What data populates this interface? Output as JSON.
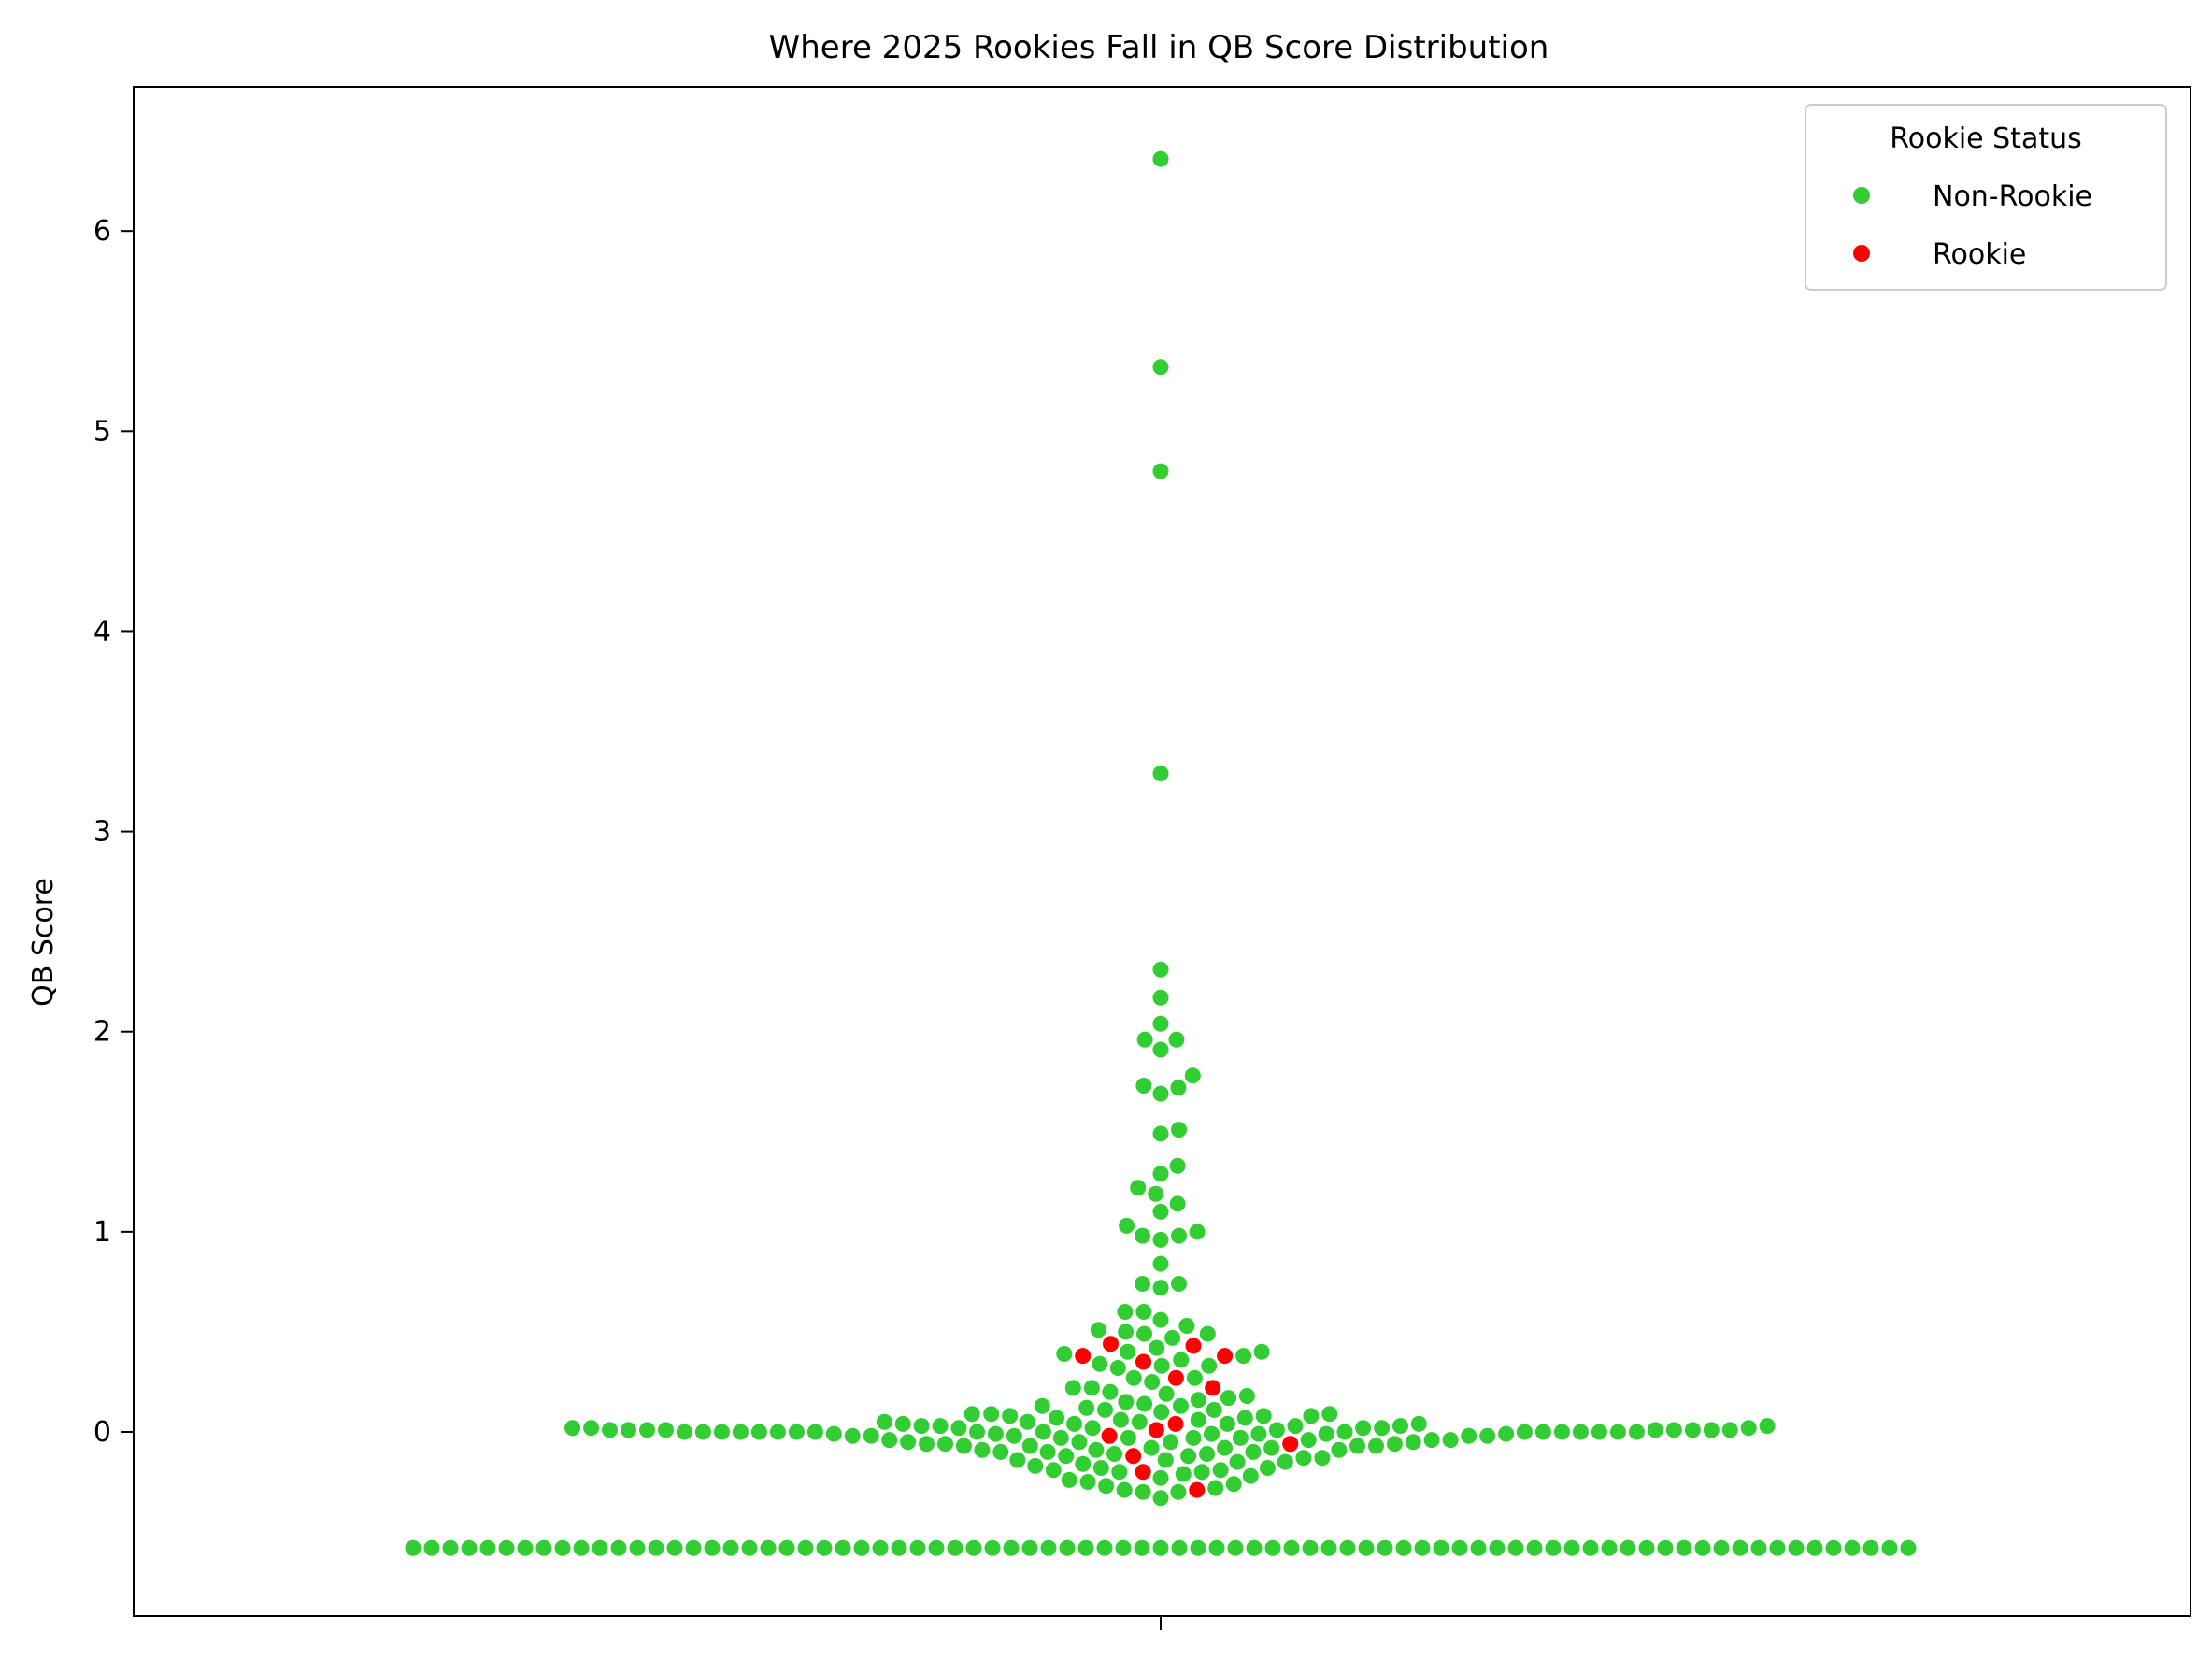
{
  "chart_data": {
    "type": "scatter",
    "subtype": "swarm",
    "title": "Where 2025 Rookies Fall in QB Score Distribution",
    "xlabel": "",
    "ylabel": "QB Score",
    "ylim": [
      -0.92,
      6.72
    ],
    "yticks": [
      0,
      1,
      2,
      3,
      4,
      5,
      6
    ],
    "grid": false,
    "legend": {
      "title": "Rookie Status",
      "placement": "upper-right",
      "entries": [
        {
          "label": "Non-Rookie",
          "color": "#32cd32"
        },
        {
          "label": "Rookie",
          "color": "#ff0000"
        }
      ]
    },
    "colors": {
      "Non-Rookie": "#32cd32",
      "Rookie": "#ff0000"
    },
    "series": [
      {
        "name": "Rookie",
        "values": [
          0.44,
          0.43,
          0.38,
          0.38,
          0.35,
          0.27,
          0.22,
          0.04,
          0.01,
          -0.02,
          -0.06,
          -0.12,
          -0.2,
          -0.29
        ]
      },
      {
        "name": "Non-Rookie",
        "values": [
          6.36,
          5.32,
          4.8,
          3.29,
          2.31,
          2.17,
          2.04,
          1.96,
          1.96,
          1.91,
          1.78,
          1.73,
          1.72,
          1.69,
          1.51,
          1.49,
          1.33,
          1.29,
          1.22,
          1.19,
          1.14,
          1.1,
          1.03,
          1.0,
          0.98,
          0.98,
          0.96,
          0.84,
          0.74,
          0.74,
          0.72,
          0.6,
          0.6,
          0.56,
          0.53,
          0.51,
          0.5,
          0.49,
          0.49,
          0.47,
          0.42,
          0.4,
          0.4,
          0.39,
          0.38,
          0.36,
          0.34,
          0.33,
          0.33,
          0.32,
          0.27,
          0.27,
          0.25,
          0.22,
          0.22,
          0.2,
          0.19,
          0.18,
          0.17,
          0.16,
          0.15,
          0.14,
          0.13,
          0.13,
          0.12,
          0.11,
          0.11,
          0.1,
          0.09,
          0.09,
          0.09,
          0.08,
          0.08,
          0.08,
          0.07,
          0.07,
          0.06,
          0.06,
          0.05,
          0.05,
          0.05,
          0.04,
          0.04,
          0.04,
          0.04,
          0.03,
          0.03,
          0.03,
          0.03,
          0.03,
          0.02,
          0.02,
          0.02,
          0.02,
          0.02,
          0.02,
          0.02,
          0.01,
          0.01,
          0.01,
          0.01,
          0.01,
          0.01,
          0.01,
          0.01,
          0.01,
          0.01,
          0.0,
          0.0,
          0.0,
          0.0,
          0.0,
          0.0,
          0.0,
          0.0,
          0.0,
          0.0,
          0.0,
          0.0,
          0.0,
          0.0,
          0.0,
          0.0,
          0.0,
          0.0,
          -0.01,
          -0.01,
          -0.01,
          -0.01,
          -0.01,
          -0.01,
          -0.02,
          -0.02,
          -0.02,
          -0.02,
          -0.02,
          -0.03,
          -0.03,
          -0.03,
          -0.03,
          -0.04,
          -0.04,
          -0.04,
          -0.04,
          -0.05,
          -0.05,
          -0.05,
          -0.05,
          -0.06,
          -0.06,
          -0.06,
          -0.07,
          -0.07,
          -0.07,
          -0.07,
          -0.08,
          -0.08,
          -0.08,
          -0.09,
          -0.09,
          -0.09,
          -0.1,
          -0.1,
          -0.1,
          -0.11,
          -0.11,
          -0.12,
          -0.12,
          -0.13,
          -0.13,
          -0.14,
          -0.14,
          -0.15,
          -0.15,
          -0.16,
          -0.17,
          -0.18,
          -0.18,
          -0.19,
          -0.19,
          -0.2,
          -0.2,
          -0.21,
          -0.22,
          -0.23,
          -0.24,
          -0.25,
          -0.26,
          -0.27,
          -0.28,
          -0.29,
          -0.3,
          -0.3,
          -0.33,
          -0.58,
          -0.58,
          -0.58,
          -0.58,
          -0.58,
          -0.58,
          -0.58,
          -0.58,
          -0.58,
          -0.58,
          -0.58,
          -0.58,
          -0.58,
          -0.58,
          -0.58,
          -0.58,
          -0.58,
          -0.58,
          -0.58,
          -0.58,
          -0.58,
          -0.58,
          -0.58,
          -0.58,
          -0.58,
          -0.58,
          -0.58,
          -0.58,
          -0.58,
          -0.58,
          -0.58,
          -0.58,
          -0.58,
          -0.58,
          -0.58,
          -0.58,
          -0.58,
          -0.58,
          -0.58,
          -0.58,
          -0.58,
          -0.58,
          -0.58,
          -0.58,
          -0.58,
          -0.58,
          -0.58,
          -0.58,
          -0.58,
          -0.58,
          -0.58,
          -0.58,
          -0.58,
          -0.58,
          -0.58,
          -0.58,
          -0.58,
          -0.58,
          -0.58,
          -0.58,
          -0.58,
          -0.58,
          -0.58,
          -0.58,
          -0.58,
          -0.58,
          -0.58,
          -0.58,
          -0.58,
          -0.58,
          -0.58,
          -0.58,
          -0.58,
          -0.58,
          -0.58,
          -0.58,
          -0.58,
          -0.58,
          -0.58,
          -0.58,
          -0.58
        ]
      }
    ]
  }
}
